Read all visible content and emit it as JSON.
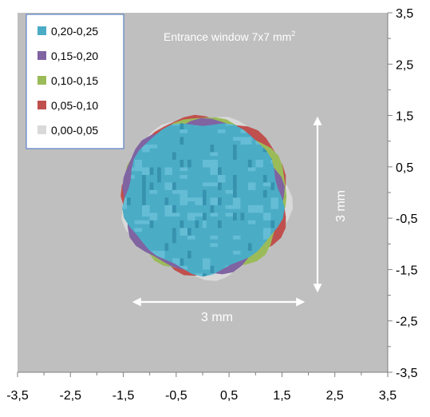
{
  "chart_data": {
    "type": "heatmap",
    "title": "",
    "annotation_title": "Entrance window  7x7 mm",
    "annotation_title_superscript": "2",
    "dimension_horizontal": "3 mm",
    "dimension_vertical": "3 mm",
    "xlim": [
      -3.5,
      3.5
    ],
    "ylim": [
      -3.5,
      3.5
    ],
    "x_ticks": [
      "-3,5",
      "-2,5",
      "-1,5",
      "-0,5",
      "0,5",
      "1,5",
      "2,5",
      "3,5"
    ],
    "y_ticks": [
      "3,5",
      "2,5",
      "1,5",
      "0,5",
      "-0,5",
      "-1,5",
      "-2,5",
      "-3,5"
    ],
    "legend_position": "top-left",
    "legend": [
      {
        "label": "0,20-0,25",
        "color": "#4bacc6"
      },
      {
        "label": "0,15-0,20",
        "color": "#8064a2"
      },
      {
        "label": "0,10-0,15",
        "color": "#9bbb59"
      },
      {
        "label": "0,05-0,10",
        "color": "#c0504d"
      },
      {
        "label": "0,00-0,05",
        "color": "#d9d9d9"
      }
    ],
    "plot_background": "#bfbfbf",
    "spot_center": [
      0,
      -0.1
    ],
    "spot_diameter_mm": 3
  }
}
